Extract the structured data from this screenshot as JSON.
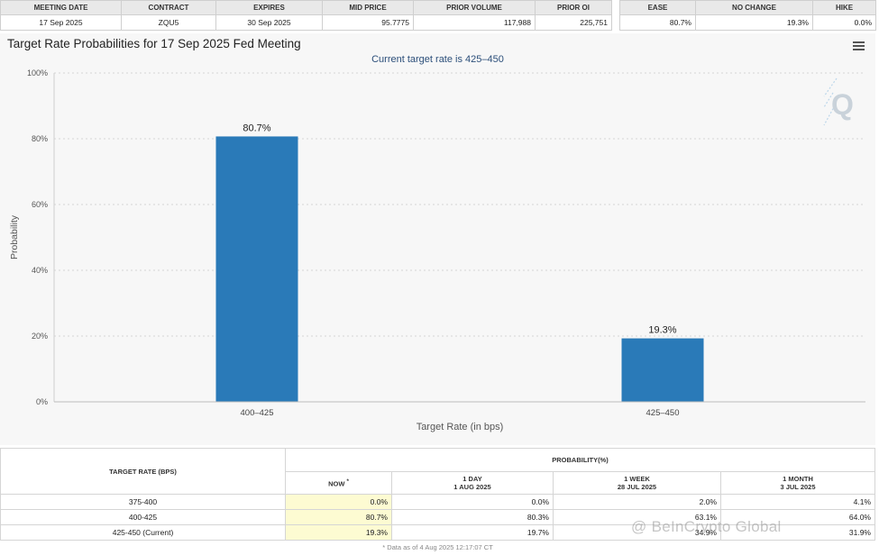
{
  "summary": {
    "headers": [
      "MEETING DATE",
      "CONTRACT",
      "EXPIRES",
      "MID PRICE",
      "PRIOR VOLUME",
      "PRIOR OI"
    ],
    "row": {
      "meeting_date": "17 Sep 2025",
      "contract": "ZQU5",
      "expires": "30 Sep 2025",
      "mid_price": "95.7775",
      "prior_volume": "117,988",
      "prior_oi": "225,751"
    },
    "outcome_headers": [
      "EASE",
      "NO CHANGE",
      "HIKE"
    ],
    "outcome_values": [
      "80.7%",
      "19.3%",
      "0.0%"
    ]
  },
  "chart": {
    "title": "Target Rate Probabilities for 17 Sep 2025 Fed Meeting",
    "subtitle": "Current target rate is 425–450"
  },
  "chart_data": {
    "type": "bar",
    "categories": [
      "400–425",
      "425–450"
    ],
    "values": [
      80.7,
      19.3
    ],
    "data_labels": [
      "80.7%",
      "19.3%"
    ],
    "xlabel": "Target Rate (in bps)",
    "ylabel": "Probability",
    "ylim": [
      0,
      100
    ],
    "yticks": [
      "0%",
      "20%",
      "40%",
      "60%",
      "80%",
      "100%"
    ],
    "bar_color": "#2a7ab8",
    "grid": true
  },
  "prob_table": {
    "col_target": "TARGET RATE (BPS)",
    "col_prob": "PROBABILITY(%)",
    "sub_headers": [
      {
        "line1": "NOW",
        "line2": ""
      },
      {
        "line1": "1 DAY",
        "line2": "1 AUG 2025"
      },
      {
        "line1": "1 WEEK",
        "line2": "28 JUL 2025"
      },
      {
        "line1": "1 MONTH",
        "line2": "3 JUL 2025"
      }
    ],
    "now_marker": "*",
    "rows": [
      {
        "rate": "375-400",
        "values": [
          "0.0%",
          "0.0%",
          "2.0%",
          "4.1%"
        ]
      },
      {
        "rate": "400-425",
        "values": [
          "80.7%",
          "80.3%",
          "63.1%",
          "64.0%"
        ]
      },
      {
        "rate": "425-450 (Current)",
        "values": [
          "19.3%",
          "19.7%",
          "34.9%",
          "31.9%"
        ]
      }
    ],
    "footnote": "* Data as of 4 Aug 2025 12:17:07 CT"
  },
  "watermark": {
    "brand": "@ BeInCrypto Global"
  }
}
